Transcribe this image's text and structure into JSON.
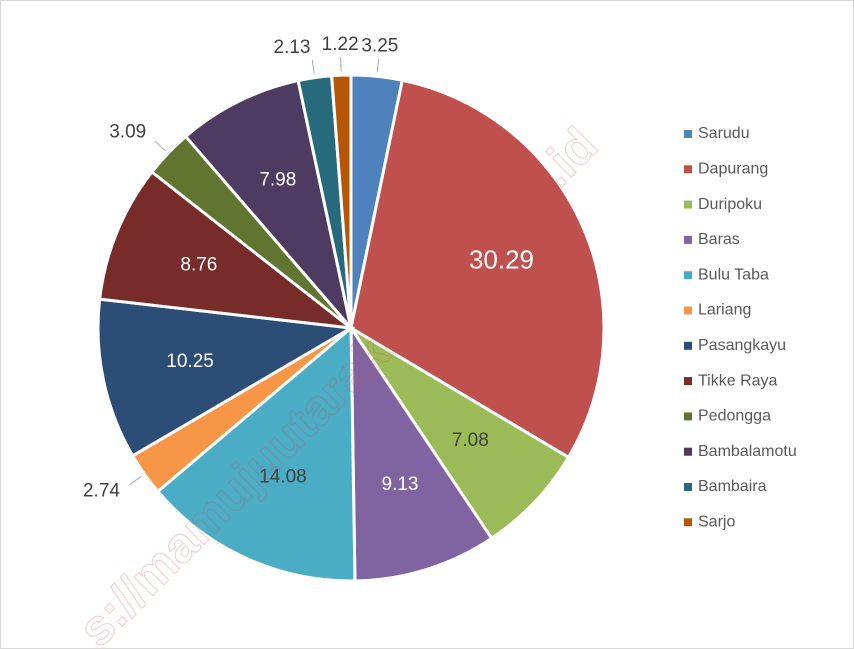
{
  "chart_data": {
    "type": "pie",
    "categories": [
      "Sarudu",
      "Dapurang",
      "Duripoku",
      "Baras",
      "Bulu Taba",
      "Lariang",
      "Pasangkayu",
      "Tikke Raya",
      "Pedongga",
      "Bambalamotu",
      "Bambaira",
      "Sarjo"
    ],
    "values": [
      3.25,
      30.29,
      7.08,
      9.13,
      14.08,
      2.74,
      10.25,
      8.76,
      3.09,
      7.98,
      2.13,
      1.22
    ],
    "colors": [
      "#4f81bd",
      "#c0504d",
      "#9bbb59",
      "#8064a2",
      "#4bacc6",
      "#f79646",
      "#2c4d75",
      "#772c2a",
      "#5f7530",
      "#4d3b62",
      "#276a7c",
      "#b65708"
    ],
    "legend": "right",
    "watermark": "s://mamujuutarakab.bps.go.id"
  }
}
